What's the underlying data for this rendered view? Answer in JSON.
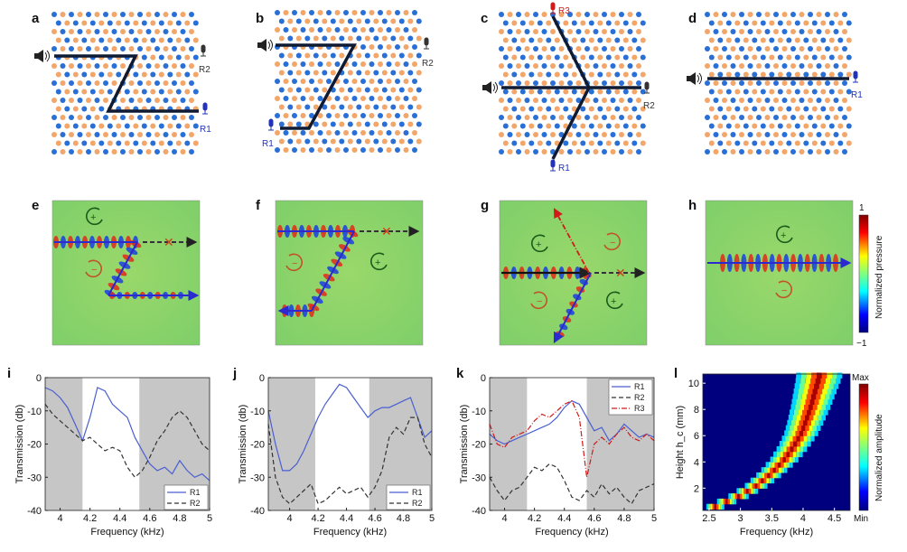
{
  "panels": {
    "labels": [
      "a",
      "b",
      "c",
      "d",
      "e",
      "f",
      "g",
      "h",
      "i",
      "j",
      "k",
      "l"
    ],
    "receivers": {
      "a": [
        "R2",
        "R1"
      ],
      "b": [
        "R2",
        "R1"
      ],
      "c": [
        "R3",
        "R2",
        "R1"
      ],
      "d": [
        "R1"
      ]
    },
    "field_colorbar": {
      "label": "Normalized pressure",
      "max": "1",
      "min": "−1"
    },
    "amp_colorbar": {
      "label": "Normalized amplitude",
      "max": "Max",
      "min": "Min"
    }
  },
  "colors": {
    "blue_dot": "#2a6fd6",
    "orange_dot": "#f3a66a",
    "path": "#0f1a33",
    "R1": "#2233bb",
    "R2": "#333333",
    "R3": "#d11a1a"
  },
  "chart_data": [
    {
      "id": "i",
      "type": "line",
      "xlabel": "Frequency (kHz)",
      "ylabel": "Transmission (db)",
      "xlim": [
        3.9,
        5
      ],
      "ylim": [
        -40,
        0
      ],
      "xticks": [
        "4",
        "4.2",
        "4.4",
        "4.6",
        "4.8",
        "5"
      ],
      "yticks": [
        "0",
        "-10",
        "-20",
        "-30",
        "-40"
      ],
      "shaded": [
        [
          3.9,
          4.15
        ],
        [
          4.53,
          5
        ]
      ],
      "legend": "bottom-right",
      "series": [
        {
          "name": "R1",
          "color": "#4a5fd0",
          "dash": "none",
          "x": [
            3.9,
            3.95,
            4.0,
            4.05,
            4.1,
            4.15,
            4.2,
            4.25,
            4.3,
            4.35,
            4.4,
            4.45,
            4.5,
            4.55,
            4.6,
            4.65,
            4.7,
            4.75,
            4.8,
            4.85,
            4.9,
            4.95,
            5.0
          ],
          "y": [
            -3,
            -4,
            -6,
            -9,
            -14,
            -19,
            -12,
            -3,
            -4,
            -8,
            -10,
            -12,
            -18,
            -22,
            -26,
            -28,
            -27,
            -29,
            -25,
            -28,
            -30,
            -29,
            -31
          ]
        },
        {
          "name": "R2",
          "color": "#333333",
          "dash": "5,3",
          "x": [
            3.9,
            3.95,
            4.0,
            4.05,
            4.1,
            4.15,
            4.2,
            4.25,
            4.3,
            4.35,
            4.4,
            4.45,
            4.5,
            4.55,
            4.6,
            4.65,
            4.7,
            4.75,
            4.8,
            4.85,
            4.9,
            4.95,
            5.0
          ],
          "y": [
            -8,
            -11,
            -13,
            -15,
            -17,
            -19,
            -18,
            -20,
            -22,
            -21,
            -22,
            -27,
            -30,
            -28,
            -24,
            -19,
            -16,
            -12,
            -10,
            -12,
            -16,
            -20,
            -22
          ]
        }
      ]
    },
    {
      "id": "j",
      "type": "line",
      "xlabel": "Frequency (kHz)",
      "ylabel": "Transmission (db)",
      "xlim": [
        3.85,
        5
      ],
      "ylim": [
        -40,
        0
      ],
      "xticks": [
        "4",
        "4.2",
        "4.4",
        "4.6",
        "4.8",
        "5"
      ],
      "yticks": [
        "0",
        "-10",
        "-20",
        "-30",
        "-40"
      ],
      "shaded": [
        [
          3.85,
          4.18
        ],
        [
          4.56,
          5
        ]
      ],
      "legend": "bottom-right",
      "series": [
        {
          "name": "R1",
          "color": "#4a5fd0",
          "dash": "none",
          "x": [
            3.85,
            3.9,
            3.95,
            4.0,
            4.05,
            4.1,
            4.15,
            4.2,
            4.25,
            4.3,
            4.35,
            4.4,
            4.45,
            4.5,
            4.55,
            4.6,
            4.65,
            4.7,
            4.75,
            4.8,
            4.85,
            4.9,
            4.95,
            5.0
          ],
          "y": [
            -10,
            -20,
            -28,
            -28,
            -26,
            -22,
            -17,
            -12,
            -8,
            -5,
            -2,
            -3,
            -6,
            -9,
            -12,
            -10,
            -9,
            -9,
            -8,
            -7,
            -6,
            -12,
            -18,
            -16
          ]
        },
        {
          "name": "R2",
          "color": "#333333",
          "dash": "5,3",
          "x": [
            3.85,
            3.9,
            3.95,
            4.0,
            4.05,
            4.1,
            4.15,
            4.2,
            4.25,
            4.3,
            4.35,
            4.4,
            4.45,
            4.5,
            4.55,
            4.6,
            4.65,
            4.7,
            4.75,
            4.8,
            4.85,
            4.9,
            4.95,
            5.0
          ],
          "y": [
            -14,
            -30,
            -36,
            -38,
            -36,
            -34,
            -32,
            -38,
            -37,
            -35,
            -33,
            -35,
            -34,
            -33,
            -36,
            -33,
            -28,
            -18,
            -15,
            -17,
            -12,
            -12,
            -20,
            -24
          ]
        }
      ]
    },
    {
      "id": "k",
      "type": "line",
      "xlabel": "Frequency (kHz)",
      "ylabel": "Transmission (db)",
      "xlim": [
        3.9,
        5
      ],
      "ylim": [
        -40,
        0
      ],
      "xticks": [
        "4",
        "4.2",
        "4.4",
        "4.6",
        "4.8",
        "5"
      ],
      "yticks": [
        "0",
        "-10",
        "-20",
        "-30",
        "-40"
      ],
      "shaded": [
        [
          3.9,
          4.15
        ],
        [
          4.55,
          5
        ]
      ],
      "legend": "top-right",
      "series": [
        {
          "name": "R1",
          "color": "#4a5fd0",
          "dash": "none",
          "x": [
            3.9,
            3.95,
            4.0,
            4.05,
            4.1,
            4.15,
            4.2,
            4.25,
            4.3,
            4.35,
            4.4,
            4.45,
            4.5,
            4.55,
            4.6,
            4.65,
            4.7,
            4.75,
            4.8,
            4.85,
            4.9,
            4.95,
            5.0
          ],
          "y": [
            -17,
            -19,
            -20,
            -19,
            -18,
            -17,
            -16,
            -15,
            -14,
            -12,
            -9,
            -7,
            -8,
            -12,
            -16,
            -15,
            -19,
            -17,
            -14,
            -16,
            -18,
            -17,
            -18
          ]
        },
        {
          "name": "R2",
          "color": "#333333",
          "dash": "5,3",
          "x": [
            3.9,
            3.95,
            4.0,
            4.05,
            4.1,
            4.15,
            4.2,
            4.25,
            4.3,
            4.35,
            4.4,
            4.45,
            4.5,
            4.55,
            4.6,
            4.65,
            4.7,
            4.75,
            4.8,
            4.85,
            4.9,
            4.95,
            5.0
          ],
          "y": [
            -30,
            -34,
            -37,
            -34,
            -33,
            -30,
            -27,
            -28,
            -26,
            -27,
            -31,
            -36,
            -37,
            -34,
            -36,
            -32,
            -35,
            -33,
            -36,
            -38,
            -34,
            -33,
            -32
          ]
        },
        {
          "name": "R3",
          "color": "#d11a1a",
          "dash": "6,2,1,2",
          "x": [
            3.9,
            3.95,
            4.0,
            4.05,
            4.1,
            4.15,
            4.2,
            4.25,
            4.3,
            4.35,
            4.4,
            4.45,
            4.5,
            4.55,
            4.6,
            4.65,
            4.7,
            4.75,
            4.8,
            4.85,
            4.9,
            4.95,
            5.0
          ],
          "y": [
            -14,
            -20,
            -21,
            -18,
            -17,
            -16,
            -13,
            -11,
            -12,
            -10,
            -8,
            -7,
            -12,
            -30,
            -20,
            -18,
            -20,
            -17,
            -15,
            -18,
            -19,
            -17,
            -19
          ]
        }
      ]
    },
    {
      "id": "l",
      "type": "heatmap",
      "xlabel": "Frequency (kHz)",
      "ylabel": "Height h_c (mm)",
      "xlim": [
        2.4,
        4.75
      ],
      "ylim": [
        0.3,
        10.7
      ],
      "xticks": [
        "2.5",
        "3",
        "3.5",
        "4",
        "4.5"
      ],
      "yticks": [
        "2",
        "4",
        "6",
        "8",
        "10"
      ],
      "ridge": {
        "h": [
          0.5,
          1,
          2,
          3,
          4,
          5,
          6,
          7,
          8,
          9,
          10,
          10.7
        ],
        "f": [
          2.6,
          2.9,
          3.25,
          3.5,
          3.7,
          3.85,
          3.97,
          4.05,
          4.12,
          4.18,
          4.24,
          4.27
        ]
      },
      "colorbar": {
        "max": "Max",
        "min": "Min"
      }
    }
  ]
}
